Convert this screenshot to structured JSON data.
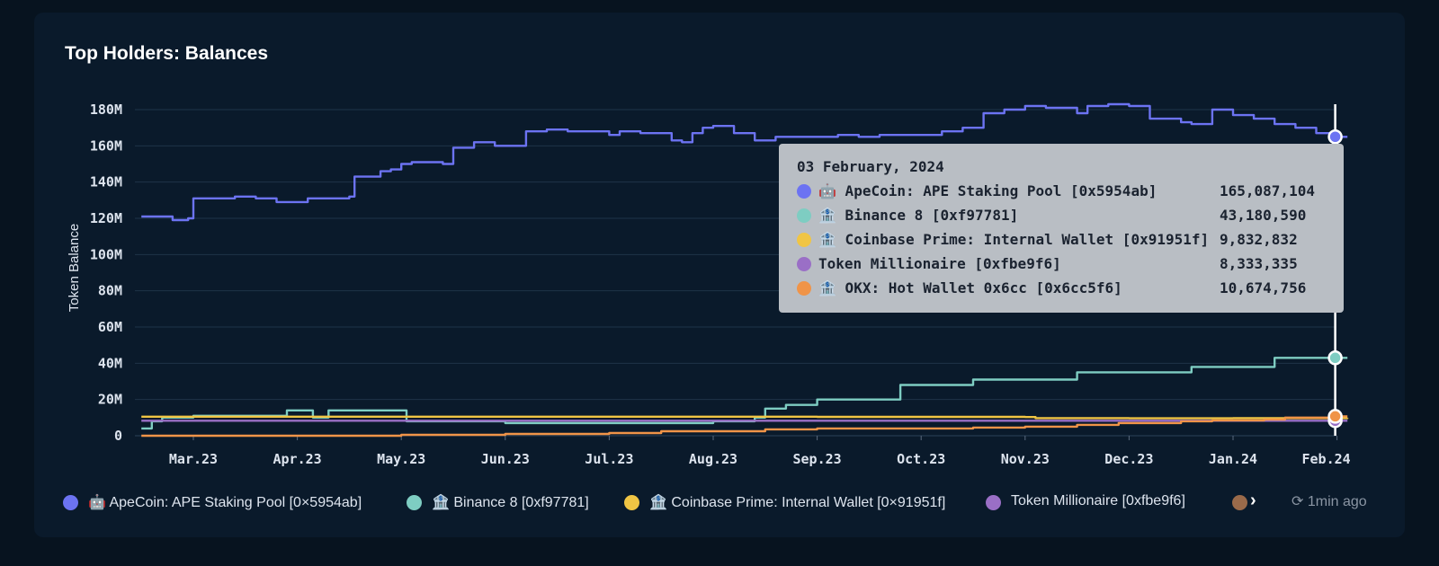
{
  "title": "Top Holders: Balances",
  "chart_data": {
    "type": "line",
    "ylabel": "Token Balance",
    "ylim": [
      0,
      180000000
    ],
    "y_ticks": [
      "0",
      "20M",
      "40M",
      "60M",
      "80M",
      "100M",
      "120M",
      "140M",
      "160M",
      "180M"
    ],
    "x_ticks": [
      "Mar.23",
      "Apr.23",
      "May.23",
      "Jun.23",
      "Jul.23",
      "Aug.23",
      "Sep.23",
      "Oct.23",
      "Nov.23",
      "Dec.23",
      "Jan.24",
      "Feb.24"
    ],
    "x_range": [
      -0.5,
      11.1
    ],
    "series": [
      {
        "name": "🤖 ApeCoin: APE Staking Pool [0×5954ab]",
        "color": "#6c73f2",
        "x": [
          -0.5,
          -0.25,
          -0.2,
          -0.05,
          0,
          0.2,
          0.4,
          0.6,
          0.8,
          1.0,
          1.1,
          1.5,
          1.55,
          1.8,
          1.9,
          2.0,
          2.1,
          2.4,
          2.5,
          2.7,
          2.9,
          3.0,
          3.2,
          3.4,
          3.6,
          3.8,
          4.0,
          4.1,
          4.3,
          4.6,
          4.7,
          4.8,
          4.9,
          5.0,
          5.2,
          5.4,
          5.6,
          5.8,
          6.0,
          6.2,
          6.4,
          6.6,
          6.8,
          7.0,
          7.2,
          7.4,
          7.6,
          7.8,
          8.0,
          8.2,
          8.4,
          8.5,
          8.6,
          8.8,
          9.0,
          9.2,
          9.5,
          9.6,
          9.8,
          10.0,
          10.2,
          10.4,
          10.6,
          10.8,
          11.0,
          11.1
        ],
        "y": [
          121,
          121,
          119,
          120,
          131,
          131,
          132,
          131,
          129,
          129,
          131,
          132,
          143,
          146,
          147,
          150,
          151,
          150,
          159,
          162,
          160,
          160,
          168,
          169,
          168,
          168,
          166,
          168,
          167,
          163,
          162,
          167,
          170,
          171,
          167,
          163,
          165,
          165,
          165,
          166,
          165,
          166,
          166,
          166,
          168,
          170,
          178,
          180,
          182,
          181,
          181,
          178,
          182,
          183,
          182,
          175,
          173,
          172,
          180,
          177,
          175,
          172,
          170,
          167,
          165,
          165
        ]
      },
      {
        "name": "🏦 Binance 8 [0xf97781]",
        "color": "#7ecdc2",
        "x": [
          -0.5,
          -0.4,
          -0.3,
          0,
          0.8,
          0.9,
          1.1,
          1.15,
          1.3,
          2.0,
          2.05,
          3.0,
          4.0,
          5.0,
          5.4,
          5.5,
          5.7,
          5.8,
          6.0,
          6.3,
          6.4,
          6.6,
          6.8,
          7.0,
          7.1,
          7.3,
          7.5,
          7.8,
          8.1,
          8.3,
          8.5,
          9.0,
          9.5,
          9.6,
          10.0,
          10.3,
          10.4,
          11.1
        ],
        "y": [
          4,
          8,
          10,
          11,
          11,
          14,
          14,
          10,
          14,
          14,
          8,
          7,
          7,
          8,
          10,
          15,
          17,
          17,
          20,
          20,
          20,
          20,
          28,
          28,
          28,
          28,
          31,
          31,
          31,
          31,
          35,
          35,
          35,
          38,
          38,
          38,
          43,
          43
        ]
      },
      {
        "name": "🏦 Coinbase Prime: Internal Wallet [0×91951f]",
        "color": "#f0c544",
        "x": [
          -0.5,
          3.0,
          6.0,
          8.0,
          8.1,
          9.0,
          10.0,
          11.1
        ],
        "y": [
          10.5,
          10.5,
          10.4,
          10.3,
          9.7,
          9.6,
          9.7,
          9.8
        ]
      },
      {
        "name": "Token Millionaire [0xfbe9f6]",
        "color": "#9a6fc6",
        "x": [
          -0.5,
          11.1
        ],
        "y": [
          8.3,
          8.3
        ]
      },
      {
        "name": "🏦 OKX: Hot Wallet 0x6cc [0x6cc5f6]",
        "color": "#f09448",
        "x": [
          -0.5,
          1.0,
          2.0,
          3.0,
          4.0,
          4.5,
          5.0,
          5.5,
          6.0,
          6.5,
          7.0,
          7.5,
          8.0,
          8.5,
          8.9,
          9.5,
          9.8,
          10.0,
          10.3,
          10.5,
          11.0,
          11.1
        ],
        "y": [
          0,
          0,
          0.5,
          1,
          1.5,
          2.5,
          2.5,
          3.5,
          4,
          4,
          4,
          4.5,
          5,
          6,
          7,
          8,
          8.5,
          8.5,
          9,
          10,
          10.7,
          10.7
        ]
      }
    ]
  },
  "tooltip": {
    "date": "03 February, 2024",
    "rows": [
      {
        "label": "🤖 ApeCoin: APE Staking Pool [0x5954ab]",
        "value": "165,087,104",
        "color": "#6c73f2"
      },
      {
        "label": "🏦 Binance 8 [0xf97781]",
        "value": "43,180,590",
        "color": "#7ecdc2"
      },
      {
        "label": "🏦 Coinbase Prime: Internal Wallet [0x91951f]",
        "value": "9,832,832",
        "color": "#f0c544"
      },
      {
        "label": "Token Millionaire [0xfbe9f6]",
        "value": "8,333,335",
        "color": "#9a6fc6"
      },
      {
        "label": "🏦 OKX: Hot Wallet 0x6cc [0x6cc5f6]",
        "value": "10,674,756",
        "color": "#f09448"
      }
    ]
  },
  "legend": {
    "items": [
      {
        "label": "🤖 ApeCoin: APE Staking Pool [0×5954ab]",
        "color": "#6c73f2"
      },
      {
        "label": "🏦 Binance 8 [0xf97781]",
        "color": "#7ecdc2"
      },
      {
        "label": "🏦 Coinbase Prime: Internal Wallet [0×91951f]",
        "color": "#f0c544"
      },
      {
        "label": "Token Millionaire [0xfbe9f6]",
        "color": "#9a6fc6"
      },
      {
        "label": "",
        "color": "#9a6a4a"
      }
    ],
    "next_icon": "chevron-right-icon",
    "refresh_icon": "refresh-icon",
    "refresh_text": "1min ago"
  }
}
